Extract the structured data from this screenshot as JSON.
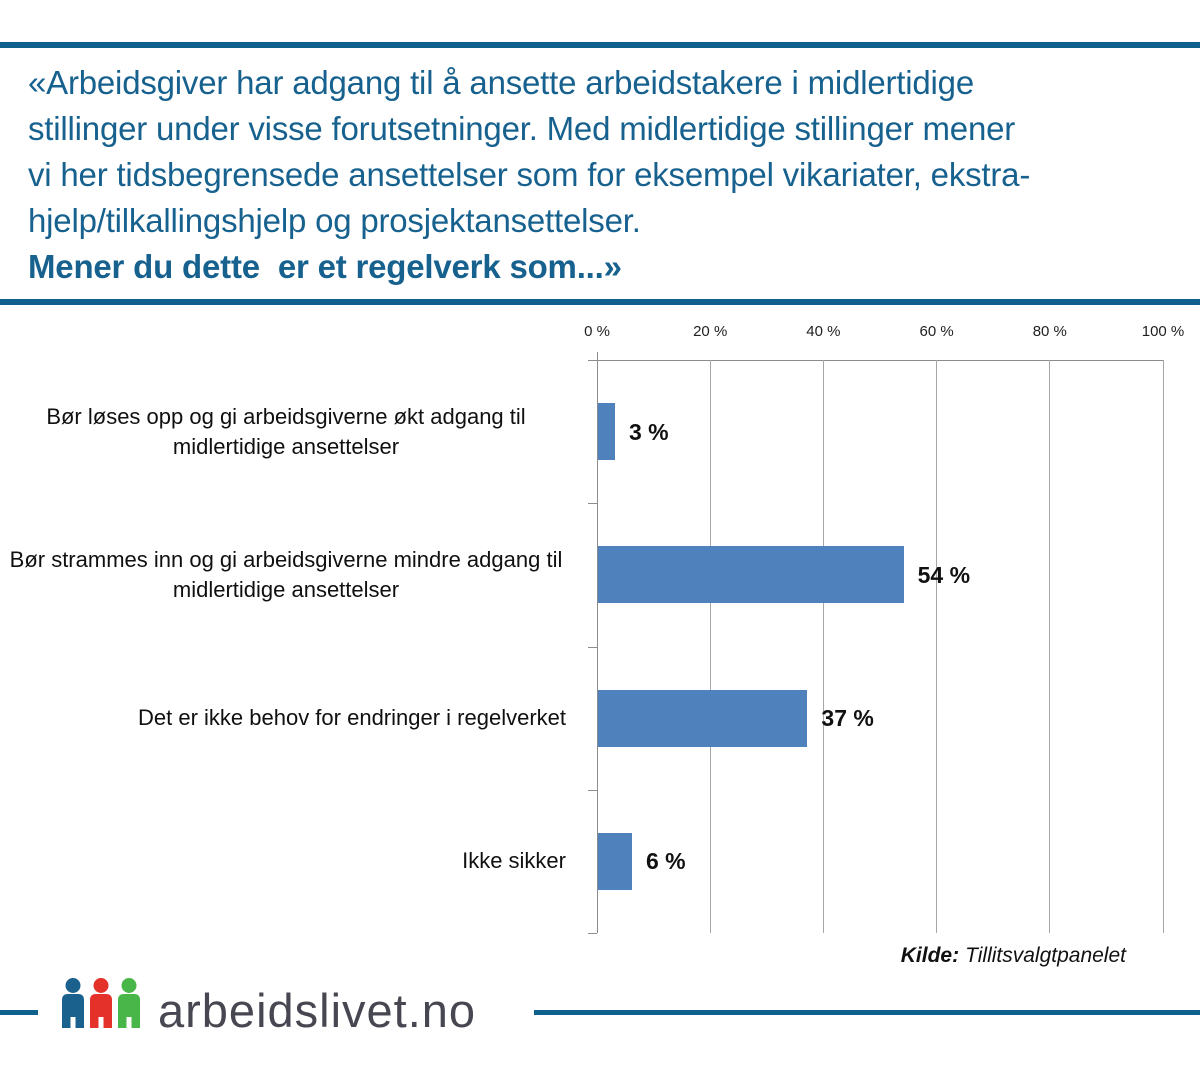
{
  "header": {
    "lines": [
      "«Arbeidsgiver har adgang til å ansette arbeidstakere i midlertidige",
      "stillinger under visse forutsetninger. Med midlertidige stillinger mener",
      "vi her tidsbegrensede ansettelser som for eksempel vikariater, ekstra-",
      "hjelp/tilkallingshjelp og prosjektansettelser."
    ],
    "bold_line": "Mener du dette  er et regelverk som...»"
  },
  "chart_data": {
    "type": "bar",
    "orientation": "horizontal",
    "categories": [
      "Bør løses opp og gi arbeidsgiverne økt adgang til midlertidige ansettelser",
      "Bør strammes inn og gi arbeidsgiverne mindre adgang til midlertidige ansettelser",
      "Det er ikke behov for endringer i regelverket",
      "Ikke sikker"
    ],
    "values": [
      3,
      54,
      37,
      6
    ],
    "value_labels": [
      "3 %",
      "54 %",
      "37 %",
      "6 %"
    ],
    "x_ticks": [
      "0 %",
      "20 %",
      "40 %",
      "60 %",
      "80 %",
      "100 %"
    ],
    "xlim": [
      0,
      100
    ],
    "grid": true,
    "value_axis_position": "top",
    "bar_color": "#4f81bd"
  },
  "source": {
    "label": "Kilde:",
    "text": "Tillitsvalgtpanelet"
  },
  "footer": {
    "logo_text": "arbeidslivet.no",
    "icon_colors": {
      "blue": "#1b618e",
      "red": "#e4322b",
      "green": "#49b649"
    }
  },
  "colors": {
    "brand_blue": "#11618f",
    "header_text": "#17618f",
    "bar": "#4f81bd",
    "gridline": "#a6a6a6",
    "axis": "#8c8c8c",
    "logo_text": "#474752"
  }
}
